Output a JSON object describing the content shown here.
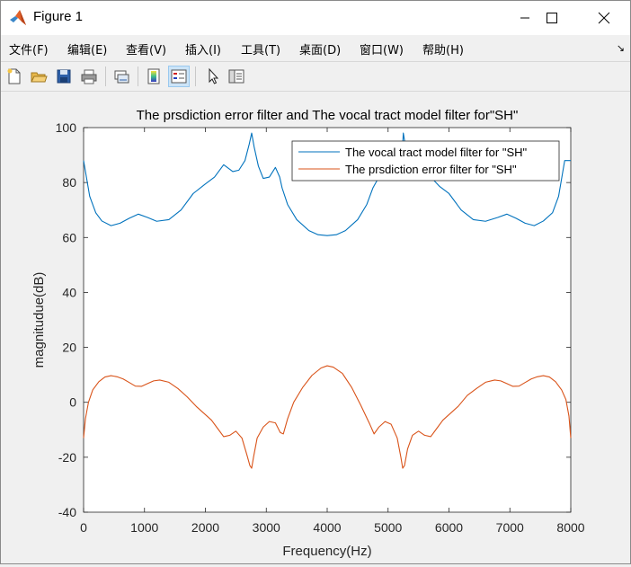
{
  "window": {
    "title": "Figure 1",
    "minimize_glyph": "—",
    "maximize_glyph": "☐",
    "close_glyph": "✕"
  },
  "menu": {
    "items": [
      "文件(F)",
      "编辑(E)",
      "查看(V)",
      "插入(I)",
      "工具(T)",
      "桌面(D)",
      "窗口(W)",
      "帮助(H)"
    ],
    "overflow_glyph": "↘"
  },
  "toolbar": {
    "icons": [
      "new-figure-icon",
      "open-file-icon",
      "save-icon",
      "print-icon",
      "link-plot-icon",
      "insert-colorbar-icon",
      "insert-legend-icon",
      "pointer-icon",
      "property-inspector-icon"
    ]
  },
  "colors": {
    "series1": "#0072BD",
    "series2": "#D95319",
    "axes_bg": "#ffffff",
    "figure_bg": "#f0f0f0"
  },
  "chart_data": {
    "type": "line",
    "title": "The prsdiction error filter and The vocal tract model filter for\"SH\"",
    "xlabel": "Frequency(Hz)",
    "ylabel": "magnitudue(dB)",
    "xlim": [
      0,
      8000
    ],
    "ylim": [
      -40,
      100
    ],
    "xticks": [
      0,
      1000,
      2000,
      3000,
      4000,
      5000,
      6000,
      7000,
      8000
    ],
    "yticks": [
      -40,
      -20,
      0,
      20,
      40,
      60,
      80,
      100
    ],
    "xtick_labels": [
      "0",
      "1000",
      "2000",
      "3000",
      "4000",
      "5000",
      "6000",
      "7000",
      "8000"
    ],
    "ytick_labels": [
      "-40",
      "-20",
      "0",
      "20",
      "40",
      "60",
      "80",
      "100"
    ],
    "grid": false,
    "legend_position": "top-right",
    "series": [
      {
        "name": "The vocal tract model filter for \"SH\"",
        "x": [
          0,
          100,
          200,
          300,
          450,
          600,
          750,
          900,
          1050,
          1200,
          1400,
          1600,
          1800,
          2000,
          2150,
          2300,
          2450,
          2550,
          2650,
          2720,
          2760,
          2800,
          2870,
          2950,
          3050,
          3150,
          3220,
          3260,
          3350,
          3500,
          3700,
          3850,
          4000,
          4150,
          4300,
          4500,
          4650,
          4750,
          4850,
          4950,
          5050,
          5150,
          5220,
          5250,
          5280,
          5330,
          5450,
          5550,
          5700,
          5850,
          6000,
          6200,
          6400,
          6600,
          6800,
          6950,
          7100,
          7250,
          7400,
          7550,
          7700,
          7800,
          7900,
          8000
        ],
        "y": [
          88,
          75,
          69,
          66,
          64.3,
          65.2,
          67,
          68.5,
          67.3,
          65.9,
          66.5,
          70,
          76,
          79.5,
          82,
          86.5,
          84,
          84.5,
          88,
          94,
          98,
          93,
          86,
          81.5,
          82,
          85.5,
          82,
          78,
          72,
          66.5,
          62.5,
          61,
          60.7,
          61,
          62.5,
          66.5,
          72,
          78,
          82,
          85.5,
          82,
          81.5,
          86,
          98,
          94,
          88,
          84.5,
          84,
          82,
          78.5,
          76,
          70,
          66.5,
          65.9,
          67.3,
          68.5,
          67,
          65.2,
          64.3,
          66,
          69,
          75,
          88,
          88
        ]
      },
      {
        "name": "The prsdiction error filter for \"SH\"",
        "x": [
          0,
          30,
          80,
          150,
          250,
          350,
          450,
          550,
          650,
          750,
          850,
          950,
          1050,
          1150,
          1250,
          1400,
          1550,
          1700,
          1850,
          2000,
          2100,
          2200,
          2300,
          2400,
          2500,
          2600,
          2680,
          2730,
          2760,
          2790,
          2850,
          2950,
          3050,
          3150,
          3230,
          3280,
          3350,
          3450,
          3600,
          3750,
          3900,
          4000,
          4100,
          4250,
          4400,
          4550,
          4700,
          4770,
          4850,
          4950,
          5050,
          5150,
          5210,
          5240,
          5270,
          5320,
          5400,
          5500,
          5600,
          5700,
          5800,
          5900,
          6000,
          6150,
          6300,
          6450,
          6600,
          6750,
          6850,
          6950,
          7050,
          7150,
          7250,
          7350,
          7450,
          7550,
          7650,
          7750,
          7850,
          7920,
          7970,
          8000
        ],
        "y": [
          -13,
          -6,
          0,
          4.5,
          7.5,
          9.2,
          9.7,
          9.3,
          8.5,
          7.2,
          5.9,
          5.8,
          6.8,
          7.8,
          8.1,
          7.3,
          5,
          2,
          -1.5,
          -4.5,
          -6.5,
          -9.5,
          -12.5,
          -12,
          -10.5,
          -13,
          -19,
          -23,
          -24,
          -20,
          -13,
          -9,
          -7,
          -7.5,
          -11,
          -11.5,
          -6,
          0,
          5.5,
          9.8,
          12.5,
          13.3,
          12.8,
          10.5,
          5.5,
          -1,
          -8,
          -11.5,
          -9,
          -7,
          -8,
          -13,
          -20,
          -24,
          -23,
          -17,
          -12,
          -10.5,
          -12,
          -12.5,
          -9.5,
          -6.5,
          -4.5,
          -1.5,
          2.5,
          5,
          7.3,
          8.1,
          7.8,
          6.8,
          5.8,
          5.9,
          7.2,
          8.5,
          9.3,
          9.7,
          9.2,
          7.5,
          4.5,
          1,
          -5,
          -13
        ]
      }
    ]
  }
}
